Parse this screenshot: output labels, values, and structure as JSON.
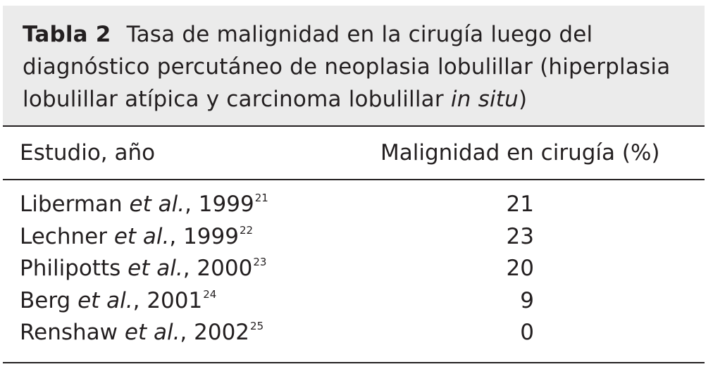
{
  "table": {
    "label": "Tabla 2",
    "title_main": "Tasa de malignidad en la cirugía luego del diagnóstico percutáneo de neoplasia lobulillar (hiperplasia lobulillar atípica y carcinoma lobulillar ",
    "title_italic": "in situ",
    "title_end": ")",
    "headers": {
      "study": "Estudio, año",
      "malignancy": "Malignidad en cirugía (%)"
    },
    "rows": [
      {
        "author": "Liberman",
        "etal": "et al.",
        "year": ", 1999",
        "ref": "21",
        "value": "21"
      },
      {
        "author": "Lechner",
        "etal": "et al.",
        "year": ", 1999",
        "ref": "22",
        "value": "23"
      },
      {
        "author": "Philipotts",
        "etal": "et al.",
        "year": ", 2000",
        "ref": "23",
        "value": "20"
      },
      {
        "author": "Berg",
        "etal": "et al.",
        "year": ", 2001",
        "ref": "24",
        "value": "9"
      },
      {
        "author": "Renshaw",
        "etal": "et al.",
        "year": ", 2002",
        "ref": "25",
        "value": "0"
      }
    ]
  }
}
